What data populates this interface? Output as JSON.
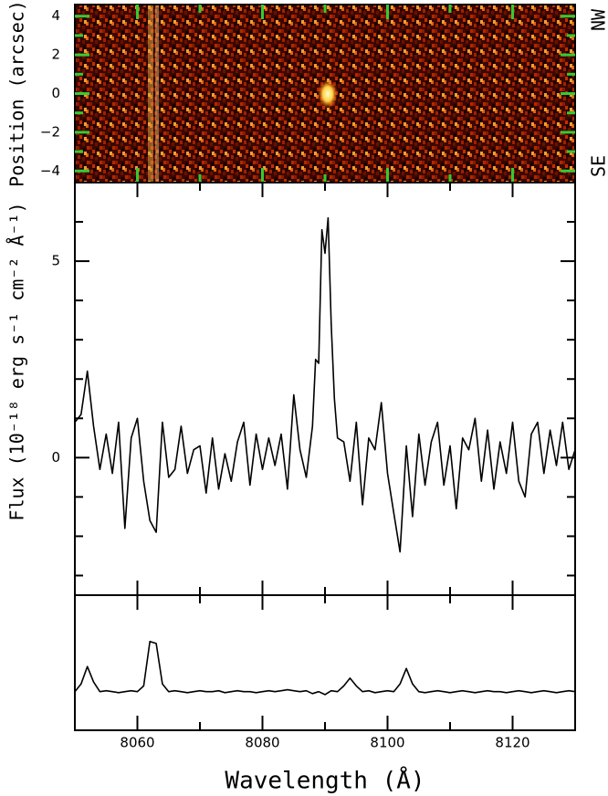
{
  "chart_data": [
    {
      "type": "image",
      "ylabel": "Position (arcsec)",
      "xlim": [
        8050,
        8130
      ],
      "xticks": [
        8060,
        8080,
        8100,
        8120
      ],
      "xminor": [
        8070,
        8090,
        8110
      ],
      "ylim": [
        -4.6,
        4.6
      ],
      "yticks": [
        -4,
        -2,
        0,
        2,
        4
      ],
      "yminor": [
        -3,
        -1,
        1,
        3
      ],
      "tick_color": "#33cc33",
      "annotations": [
        "NW",
        "SE"
      ]
    },
    {
      "type": "line",
      "ylabel": "Flux (10⁻¹⁸ erg s⁻¹ cm⁻² Å⁻¹)",
      "color": "#000000",
      "xlim": [
        8050,
        8130
      ],
      "xticks": [
        8060,
        8080,
        8100,
        8120
      ],
      "xminor": [
        8070,
        8090,
        8110
      ],
      "ylim": [
        -3.5,
        7
      ],
      "yticks": [
        0,
        5
      ],
      "yminor": [
        -3,
        -2,
        -1,
        1,
        2,
        3,
        4,
        6
      ],
      "x": [
        8050,
        8051,
        8052,
        8053,
        8054,
        8055,
        8056,
        8057,
        8058,
        8059,
        8060,
        8061,
        8062,
        8063,
        8064,
        8065,
        8066,
        8067,
        8068,
        8069,
        8070,
        8071,
        8072,
        8073,
        8074,
        8075,
        8076,
        8077,
        8078,
        8079,
        8080,
        8081,
        8082,
        8083,
        8084,
        8085,
        8086,
        8087,
        8088,
        8088.5,
        8089,
        8089.5,
        8090,
        8090.5,
        8091,
        8091.5,
        8092,
        8093,
        8094,
        8095,
        8096,
        8097,
        8098,
        8099,
        8100,
        8101,
        8102,
        8103,
        8104,
        8105,
        8106,
        8107,
        8108,
        8109,
        8110,
        8111,
        8112,
        8113,
        8114,
        8115,
        8116,
        8117,
        8118,
        8119,
        8120,
        8121,
        8122,
        8123,
        8124,
        8125,
        8126,
        8127,
        8128,
        8129,
        8130
      ],
      "values": [
        0.9,
        1.1,
        2.2,
        0.8,
        -0.3,
        0.6,
        -0.4,
        0.9,
        -1.8,
        0.5,
        1.0,
        -0.6,
        -1.6,
        -1.9,
        0.9,
        -0.5,
        -0.3,
        0.8,
        -0.4,
        0.2,
        0.3,
        -0.9,
        0.5,
        -0.8,
        0.1,
        -0.6,
        0.4,
        0.9,
        -0.7,
        0.6,
        -0.3,
        0.5,
        -0.2,
        0.6,
        -0.8,
        1.6,
        0.2,
        -0.5,
        0.8,
        2.5,
        2.4,
        5.8,
        5.2,
        6.1,
        3.4,
        1.5,
        0.5,
        0.4,
        -0.6,
        0.9,
        -1.2,
        0.5,
        0.2,
        1.4,
        -0.4,
        -1.4,
        -2.4,
        0.3,
        -1.5,
        0.6,
        -0.7,
        0.4,
        0.9,
        -0.7,
        0.3,
        -1.3,
        0.5,
        0.2,
        1.0,
        -0.6,
        0.7,
        -0.8,
        0.4,
        -0.4,
        0.9,
        -0.6,
        -1.0,
        0.6,
        0.9,
        -0.4,
        0.7,
        -0.2,
        0.9,
        -0.3,
        0.2
      ]
    },
    {
      "type": "line",
      "color": "#000000",
      "xlabel": "Wavelength (Å)",
      "xlim": [
        8050,
        8130
      ],
      "xticks": [
        8060,
        8080,
        8100,
        8120
      ],
      "xminor": [
        8070,
        8090,
        8110
      ],
      "ylim": [
        -2,
        5
      ],
      "x": [
        8050,
        8051,
        8052,
        8053,
        8054,
        8055,
        8056,
        8057,
        8058,
        8059,
        8060,
        8061,
        8062,
        8063,
        8064,
        8065,
        8066,
        8067,
        8068,
        8069,
        8070,
        8071,
        8072,
        8073,
        8074,
        8075,
        8076,
        8077,
        8078,
        8079,
        8080,
        8081,
        8082,
        8083,
        8084,
        8085,
        8086,
        8087,
        8088,
        8089,
        8090,
        8091,
        8092,
        8093,
        8094,
        8095,
        8096,
        8097,
        8098,
        8099,
        8100,
        8101,
        8102,
        8103,
        8104,
        8105,
        8106,
        8107,
        8108,
        8109,
        8110,
        8111,
        8112,
        8113,
        8114,
        8115,
        8116,
        8117,
        8118,
        8119,
        8120,
        8121,
        8122,
        8123,
        8124,
        8125,
        8126,
        8127,
        8128,
        8129,
        8130
      ],
      "values": [
        0.0,
        0.4,
        1.3,
        0.5,
        0.0,
        0.05,
        0.0,
        -0.05,
        0.0,
        0.05,
        0.0,
        0.3,
        2.6,
        2.5,
        0.4,
        0.0,
        0.05,
        0.0,
        -0.05,
        0.0,
        0.05,
        0.0,
        0.0,
        0.05,
        -0.05,
        0.0,
        0.05,
        0.0,
        0.0,
        -0.05,
        0.0,
        0.05,
        0.0,
        0.05,
        0.1,
        0.05,
        0.0,
        0.05,
        -0.1,
        0.0,
        -0.15,
        0.05,
        0.0,
        0.3,
        0.7,
        0.3,
        0.0,
        0.05,
        -0.05,
        0.0,
        0.05,
        0.0,
        0.4,
        1.2,
        0.4,
        0.0,
        -0.05,
        0.0,
        0.05,
        0.0,
        -0.05,
        0.0,
        0.05,
        0.0,
        -0.05,
        0.0,
        0.05,
        0.0,
        0.0,
        -0.05,
        0.0,
        0.05,
        0.0,
        -0.05,
        0.0,
        0.05,
        0.0,
        -0.05,
        0.0,
        0.05,
        0.0
      ]
    }
  ]
}
